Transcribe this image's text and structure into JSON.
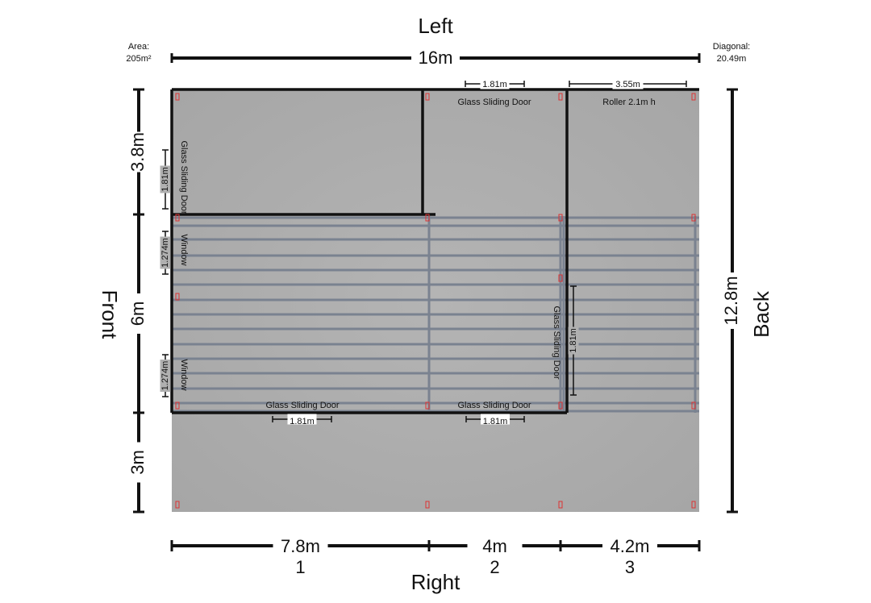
{
  "sides": {
    "top": "Left",
    "bottom": "Right",
    "left": "Front",
    "right": "Back"
  },
  "area": {
    "label": "Area:",
    "value": "205m²"
  },
  "diagonal": {
    "label": "Diagonal:",
    "value": "20.49m"
  },
  "dimensions": {
    "width": "16m",
    "depth": "12.8m",
    "rows": [
      "3.8m",
      "6m",
      "3m"
    ],
    "columns": [
      {
        "width": "7.8m",
        "number": "1"
      },
      {
        "width": "4m",
        "number": "2"
      },
      {
        "width": "4.2m",
        "number": "3"
      }
    ]
  },
  "openings": [
    {
      "label": "Glass Sliding Door",
      "width": "1.81m"
    },
    {
      "label": "Roller 2.1m h",
      "width": "3.55m"
    },
    {
      "label": "Glass Sliding Door",
      "width": "1.81m"
    },
    {
      "label": "Window",
      "width": "1.274m"
    },
    {
      "label": "Window",
      "width": "1.274m"
    },
    {
      "label": "Glass Sliding Door",
      "width": "1.81m"
    },
    {
      "label": "Glass Sliding Door",
      "width": "1.81m"
    },
    {
      "label": "Glass Sliding Door",
      "width": "1.81m"
    }
  ]
}
